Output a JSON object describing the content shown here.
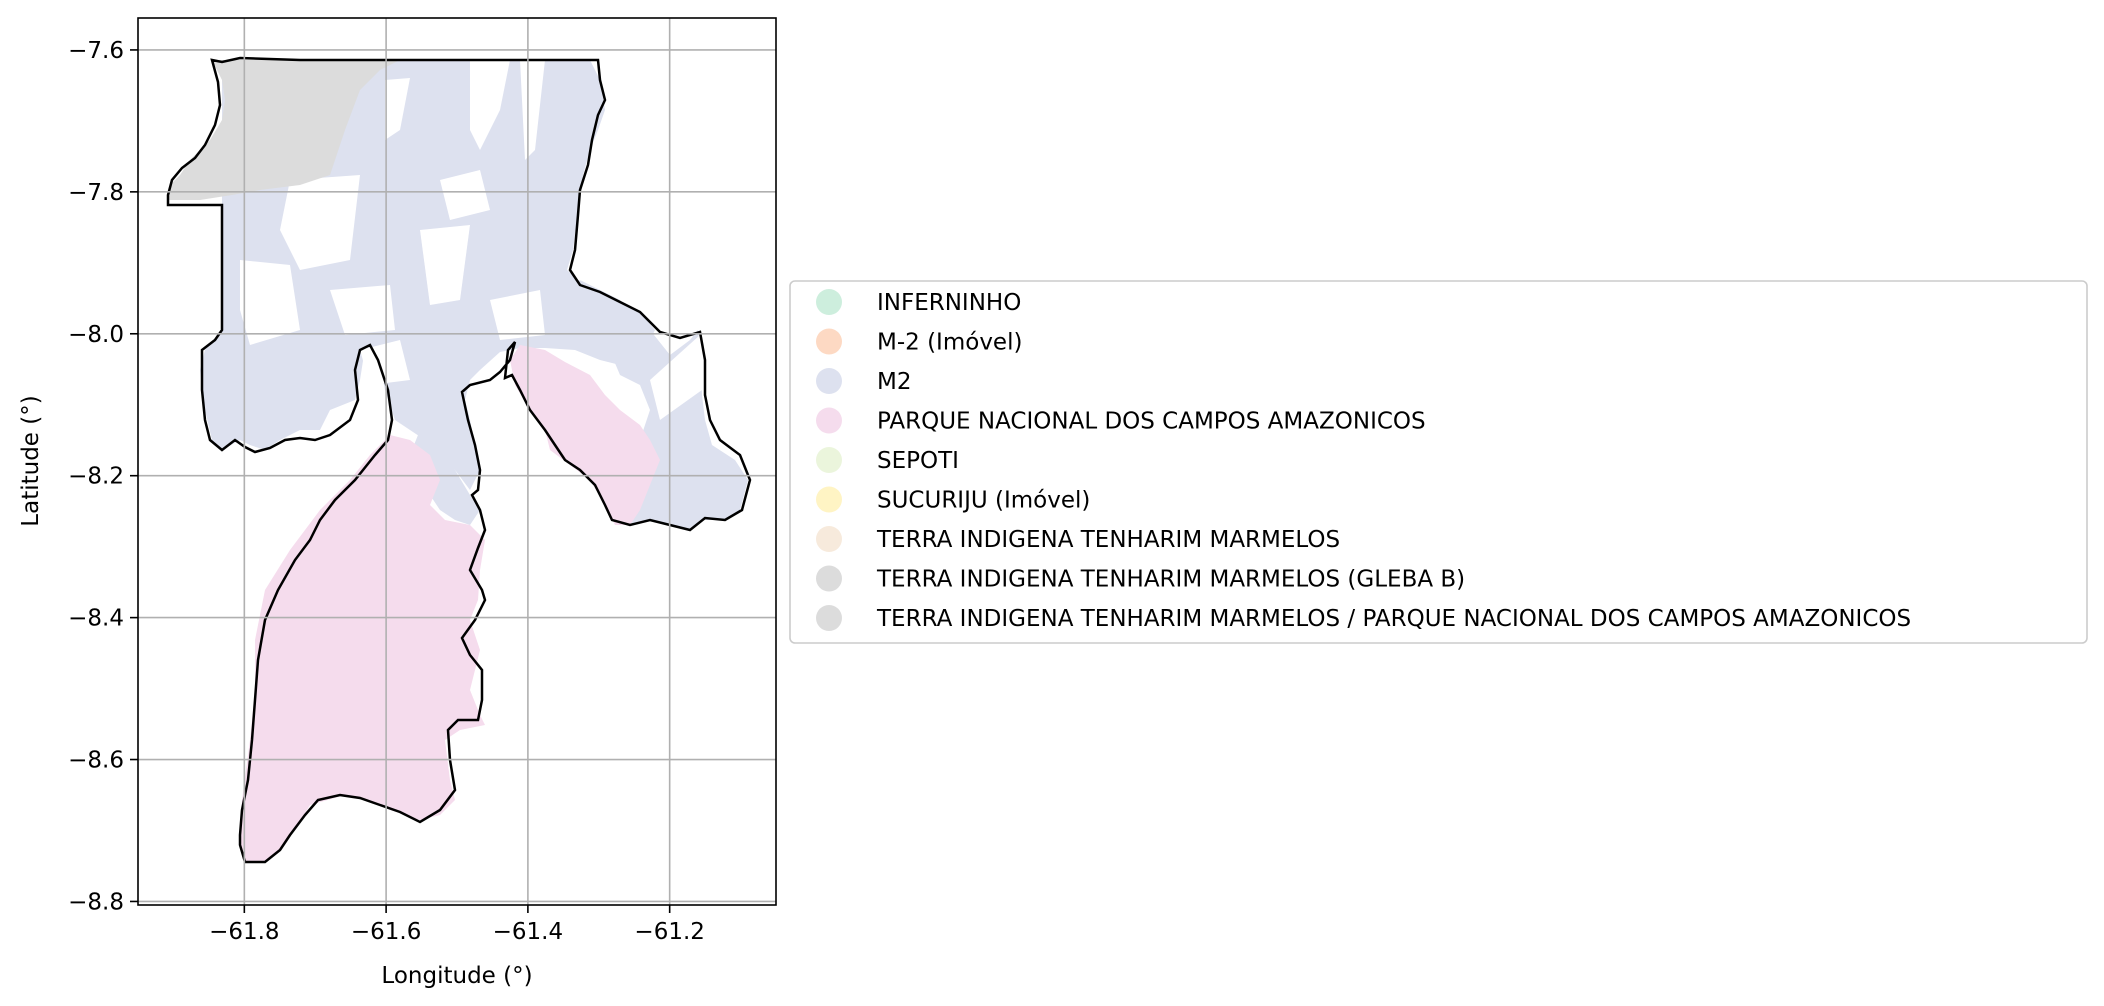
{
  "map": {
    "xlabel": "Longitude (°)",
    "ylabel": "Latitude (°)",
    "xlim": [
      -61.95,
      -61.05
    ],
    "ylim": [
      -8.805,
      -7.555
    ],
    "x_ticks": [
      -61.8,
      -61.6,
      -61.4,
      -61.2
    ],
    "y_ticks": [
      -7.6,
      -7.8,
      -8.0,
      -8.2,
      -8.4,
      -8.6,
      -8.8
    ],
    "x_tick_labels": [
      "−61.8",
      "−61.6",
      "−61.4",
      "−61.2"
    ],
    "y_tick_labels": [
      "−7.6",
      "−7.8",
      "−8.0",
      "−8.2",
      "−8.4",
      "−8.6",
      "−8.8"
    ],
    "grid": true,
    "legend_position": "center-right outside",
    "boundary_color": "#000000",
    "legend": [
      {
        "label": "INFERNINHO",
        "color": "#cdeedd"
      },
      {
        "label": "M-2 (Imóvel)",
        "color": "#fdd9c3"
      },
      {
        "label": "M2",
        "color": "#dde1ef"
      },
      {
        "label": "PARQUE NACIONAL DOS CAMPOS AMAZONICOS",
        "color": "#f5dced"
      },
      {
        "label": "SEPOTI",
        "color": "#ebf5dc"
      },
      {
        "label": "SUCURIJU (Imóvel)",
        "color": "#fff4c4"
      },
      {
        "label": "TERRA INDIGENA TENHARIM MARMELOS",
        "color": "#f7eadc"
      },
      {
        "label": "TERRA INDIGENA TENHARIM MARMELOS (GLEBA B)",
        "color": "#dcdcdc"
      },
      {
        "label": "TERRA INDIGENA TENHARIM MARMELOS / PARQUE NACIONAL DOS CAMPOS AMAZONICOS",
        "color": "#dcdcdc"
      }
    ]
  }
}
